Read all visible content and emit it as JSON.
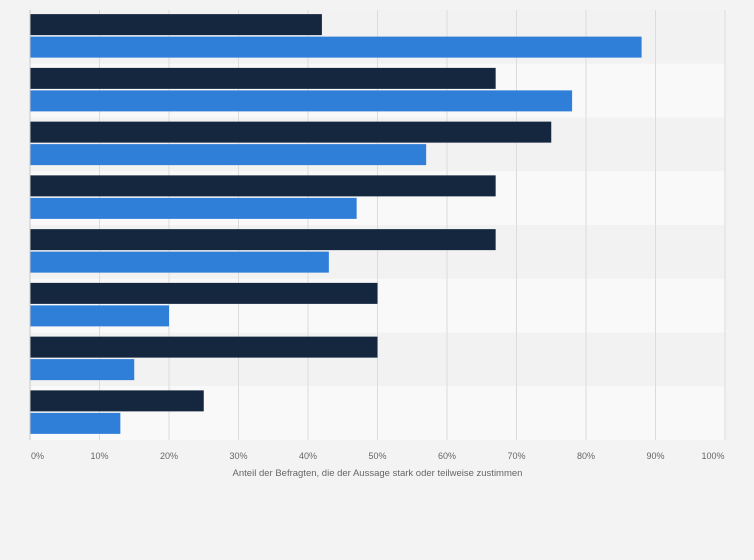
{
  "chart_data": {
    "type": "bar",
    "orientation": "horizontal",
    "categories": [
      "",
      "",
      "",
      "",
      "",
      "",
      "",
      ""
    ],
    "series": [
      {
        "color": "#14273f",
        "values": [
          42,
          67,
          75,
          67,
          67,
          50,
          50,
          25
        ]
      },
      {
        "color": "#2f7ed8",
        "values": [
          88,
          78,
          57,
          47,
          43,
          20,
          15,
          13
        ]
      }
    ],
    "xlim": [
      0,
      100
    ],
    "x_ticks": [
      "0%",
      "10%",
      "20%",
      "30%",
      "40%",
      "50%",
      "60%",
      "70%",
      "80%",
      "90%",
      "100%"
    ],
    "xlabel": "Anteil der Befragten, die der Aussage stark oder teilweise zustimmen",
    "ylabel": "",
    "title": "",
    "grid": true,
    "legend": "none"
  }
}
